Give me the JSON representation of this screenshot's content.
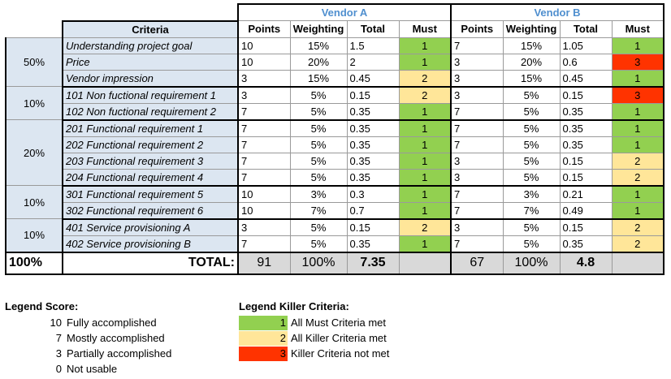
{
  "colors": {
    "must_green": "#92d050",
    "must_yellow": "#ffe699",
    "must_red": "#ff3300",
    "criteria_bg": "#dce6f1",
    "vendor_title": "#4f8fcf",
    "total_bg": "#d9d9d9"
  },
  "table": {
    "vendor_a": "Vendor A",
    "vendor_b": "Vendor B",
    "headers": {
      "criteria": "Criteria",
      "points": "Points",
      "weighting": "Weighting",
      "total": "Total",
      "must": "Must"
    },
    "groups": [
      {
        "weight": "50%",
        "rows": [
          {
            "criteria": "Understanding project goal",
            "a": {
              "points": "10",
              "weighting": "15%",
              "total": "1.5",
              "must": "1"
            },
            "b": {
              "points": "7",
              "weighting": "15%",
              "total": "1.05",
              "must": "1"
            }
          },
          {
            "criteria": "Price",
            "a": {
              "points": "10",
              "weighting": "20%",
              "total": "2",
              "must": "1"
            },
            "b": {
              "points": "3",
              "weighting": "20%",
              "total": "0.6",
              "must": "3"
            }
          },
          {
            "criteria": "Vendor impression",
            "a": {
              "points": "3",
              "weighting": "15%",
              "total": "0.45",
              "must": "2"
            },
            "b": {
              "points": "3",
              "weighting": "15%",
              "total": "0.45",
              "must": "1"
            }
          }
        ]
      },
      {
        "weight": "10%",
        "rows": [
          {
            "criteria": "101 Non fuctional requirement 1",
            "a": {
              "points": "3",
              "weighting": "5%",
              "total": "0.15",
              "must": "2"
            },
            "b": {
              "points": "3",
              "weighting": "5%",
              "total": "0.15",
              "must": "3"
            }
          },
          {
            "criteria": "102 Non fuctional requirement 2",
            "a": {
              "points": "7",
              "weighting": "5%",
              "total": "0.35",
              "must": "1"
            },
            "b": {
              "points": "7",
              "weighting": "5%",
              "total": "0.35",
              "must": "1"
            }
          }
        ]
      },
      {
        "weight": "20%",
        "rows": [
          {
            "criteria": "201 Functional requirement 1",
            "a": {
              "points": "7",
              "weighting": "5%",
              "total": "0.35",
              "must": "1"
            },
            "b": {
              "points": "7",
              "weighting": "5%",
              "total": "0.35",
              "must": "1"
            }
          },
          {
            "criteria": "202 Functional requirement 2",
            "a": {
              "points": "7",
              "weighting": "5%",
              "total": "0.35",
              "must": "1"
            },
            "b": {
              "points": "7",
              "weighting": "5%",
              "total": "0.35",
              "must": "1"
            }
          },
          {
            "criteria": "203 Functional requirement 3",
            "a": {
              "points": "7",
              "weighting": "5%",
              "total": "0.35",
              "must": "1"
            },
            "b": {
              "points": "3",
              "weighting": "5%",
              "total": "0.15",
              "must": "2"
            }
          },
          {
            "criteria": "204 Functional requirement 4",
            "a": {
              "points": "7",
              "weighting": "5%",
              "total": "0.35",
              "must": "1"
            },
            "b": {
              "points": "3",
              "weighting": "5%",
              "total": "0.15",
              "must": "2"
            }
          }
        ]
      },
      {
        "weight": "10%",
        "rows": [
          {
            "criteria": "301 Functional requirement 5",
            "a": {
              "points": "10",
              "weighting": "3%",
              "total": "0.3",
              "must": "1"
            },
            "b": {
              "points": "7",
              "weighting": "3%",
              "total": "0.21",
              "must": "1"
            }
          },
          {
            "criteria": "302 Functional requirement 6",
            "a": {
              "points": "10",
              "weighting": "7%",
              "total": "0.7",
              "must": "1"
            },
            "b": {
              "points": "7",
              "weighting": "7%",
              "total": "0.49",
              "must": "1"
            }
          }
        ]
      },
      {
        "weight": "10%",
        "rows": [
          {
            "criteria": "401 Service provisioning A",
            "a": {
              "points": "3",
              "weighting": "5%",
              "total": "0.15",
              "must": "2"
            },
            "b": {
              "points": "3",
              "weighting": "5%",
              "total": "0.15",
              "must": "2"
            }
          },
          {
            "criteria": "402 Service provisioning B",
            "a": {
              "points": "7",
              "weighting": "5%",
              "total": "0.35",
              "must": "1"
            },
            "b": {
              "points": "7",
              "weighting": "5%",
              "total": "0.35",
              "must": "2"
            }
          }
        ]
      }
    ],
    "totals": {
      "weight": "100%",
      "label": "TOTAL:",
      "a": {
        "points": "91",
        "weighting": "100%",
        "total": "7.35"
      },
      "b": {
        "points": "67",
        "weighting": "100%",
        "total": "4.8"
      }
    }
  },
  "legend_score": {
    "title": "Legend Score:",
    "items": [
      {
        "value": "10",
        "label": "Fully accomplished"
      },
      {
        "value": "7",
        "label": "Mostly accomplished"
      },
      {
        "value": "3",
        "label": "Partially accomplished"
      },
      {
        "value": "0",
        "label": "Not usable"
      }
    ]
  },
  "legend_killer": {
    "title": "Legend Killer Criteria:",
    "items": [
      {
        "value": "1",
        "label": "All Must Criteria met",
        "color": "#92d050"
      },
      {
        "value": "2",
        "label": "All Killer Criteria met",
        "color": "#ffe699"
      },
      {
        "value": "3",
        "label": "Killer Criteria not met",
        "color": "#ff3300"
      }
    ]
  }
}
